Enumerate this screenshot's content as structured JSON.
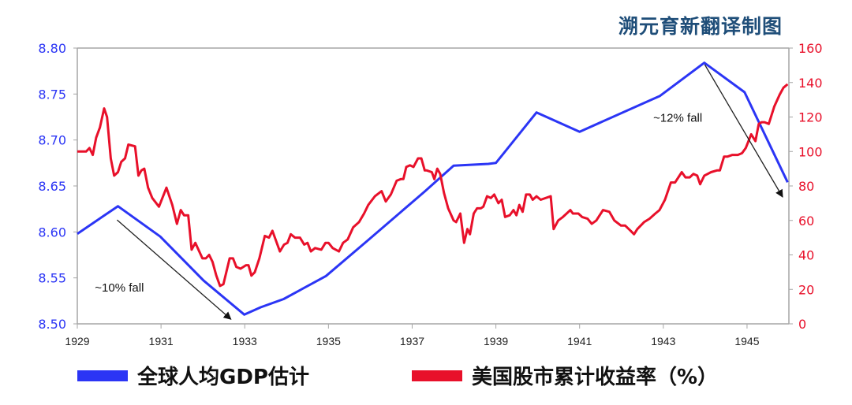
{
  "title": "溯元育新翻译制图",
  "chart_data": {
    "type": "line",
    "title": "",
    "xlabel": "",
    "xlim": [
      1929,
      1946
    ],
    "x_ticks": [
      "1929",
      "1931",
      "1933",
      "1935",
      "1937",
      "1939",
      "1941",
      "1943",
      "1945"
    ],
    "y_left": {
      "lim": [
        8.5,
        8.8
      ],
      "ticks": [
        "8.50",
        "8.55",
        "8.60",
        "8.65",
        "8.70",
        "8.75",
        "8.80"
      ],
      "color": "#2b35f5"
    },
    "y_right": {
      "lim": [
        0,
        160
      ],
      "ticks": [
        "0",
        "20",
        "40",
        "60",
        "80",
        "100",
        "120",
        "140",
        "160"
      ],
      "color": "#e8102a"
    },
    "grid": false,
    "legend_position": "bottom",
    "series": [
      {
        "name": "全球人均GDP估计",
        "axis": "left",
        "color": "#2b35f5",
        "points": [
          [
            1929.0,
            8.598
          ],
          [
            1929.97,
            8.628
          ],
          [
            1930.98,
            8.595
          ],
          [
            1932.02,
            8.547
          ],
          [
            1932.99,
            8.51
          ],
          [
            1933.38,
            8.518
          ],
          [
            1933.93,
            8.527
          ],
          [
            1934.94,
            8.552
          ],
          [
            1935.92,
            8.59
          ],
          [
            1937.3,
            8.644
          ],
          [
            1937.99,
            8.672
          ],
          [
            1938.82,
            8.674
          ],
          [
            1939.0,
            8.675
          ],
          [
            1939.97,
            8.73
          ],
          [
            1941.0,
            8.709
          ],
          [
            1942.92,
            8.748
          ],
          [
            1943.98,
            8.784
          ],
          [
            1944.94,
            8.752
          ],
          [
            1945.97,
            8.654
          ]
        ]
      },
      {
        "name": "美国股市累计收益率（%）",
        "axis": "right",
        "color": "#e8102a",
        "points": [
          [
            1929.0,
            100
          ],
          [
            1929.21,
            100
          ],
          [
            1929.29,
            102
          ],
          [
            1929.37,
            98
          ],
          [
            1929.45,
            108
          ],
          [
            1929.54,
            114
          ],
          [
            1929.64,
            125
          ],
          [
            1929.71,
            120
          ],
          [
            1929.8,
            96
          ],
          [
            1929.88,
            86
          ],
          [
            1929.97,
            88
          ],
          [
            1930.05,
            94
          ],
          [
            1930.14,
            96
          ],
          [
            1930.22,
            104
          ],
          [
            1930.38,
            103
          ],
          [
            1930.46,
            86
          ],
          [
            1930.53,
            89
          ],
          [
            1930.6,
            90
          ],
          [
            1930.69,
            79
          ],
          [
            1930.79,
            73
          ],
          [
            1930.95,
            68
          ],
          [
            1931.13,
            79
          ],
          [
            1931.27,
            69
          ],
          [
            1931.38,
            58
          ],
          [
            1931.47,
            66
          ],
          [
            1931.55,
            63
          ],
          [
            1931.65,
            63
          ],
          [
            1931.73,
            43
          ],
          [
            1931.82,
            47
          ],
          [
            1931.99,
            38
          ],
          [
            1932.07,
            38
          ],
          [
            1932.15,
            40
          ],
          [
            1932.23,
            36
          ],
          [
            1932.32,
            28
          ],
          [
            1932.41,
            22
          ],
          [
            1932.49,
            23
          ],
          [
            1932.64,
            38
          ],
          [
            1932.72,
            38
          ],
          [
            1932.8,
            33
          ],
          [
            1932.9,
            32
          ],
          [
            1933.03,
            34
          ],
          [
            1933.09,
            34
          ],
          [
            1933.16,
            28
          ],
          [
            1933.24,
            30
          ],
          [
            1933.35,
            38
          ],
          [
            1933.48,
            51
          ],
          [
            1933.58,
            50
          ],
          [
            1933.66,
            54
          ],
          [
            1933.84,
            42
          ],
          [
            1933.94,
            46
          ],
          [
            1934.02,
            47
          ],
          [
            1934.1,
            52
          ],
          [
            1934.2,
            50
          ],
          [
            1934.32,
            50
          ],
          [
            1934.42,
            46
          ],
          [
            1934.5,
            47
          ],
          [
            1934.58,
            42
          ],
          [
            1934.68,
            44
          ],
          [
            1934.83,
            43
          ],
          [
            1934.93,
            47
          ],
          [
            1935.0,
            47
          ],
          [
            1935.1,
            44
          ],
          [
            1935.25,
            42
          ],
          [
            1935.35,
            47
          ],
          [
            1935.46,
            49
          ],
          [
            1935.59,
            56
          ],
          [
            1935.73,
            59
          ],
          [
            1935.85,
            64
          ],
          [
            1935.95,
            69
          ],
          [
            1936.11,
            74
          ],
          [
            1936.27,
            77
          ],
          [
            1936.37,
            71
          ],
          [
            1936.49,
            75
          ],
          [
            1936.63,
            83
          ],
          [
            1936.73,
            84
          ],
          [
            1936.79,
            84
          ],
          [
            1936.86,
            91
          ],
          [
            1936.95,
            92
          ],
          [
            1937.03,
            91
          ],
          [
            1937.14,
            96
          ],
          [
            1937.22,
            96
          ],
          [
            1937.3,
            89
          ],
          [
            1937.35,
            89
          ],
          [
            1937.47,
            88
          ],
          [
            1937.53,
            84
          ],
          [
            1937.6,
            90
          ],
          [
            1937.67,
            87
          ],
          [
            1937.76,
            76
          ],
          [
            1937.86,
            67
          ],
          [
            1937.99,
            60
          ],
          [
            1938.05,
            59
          ],
          [
            1938.15,
            64
          ],
          [
            1938.24,
            47
          ],
          [
            1938.32,
            55
          ],
          [
            1938.38,
            52
          ],
          [
            1938.47,
            64
          ],
          [
            1938.55,
            67
          ],
          [
            1938.64,
            67
          ],
          [
            1938.7,
            68
          ],
          [
            1938.79,
            74
          ],
          [
            1938.88,
            73
          ],
          [
            1938.96,
            75
          ],
          [
            1939.06,
            70
          ],
          [
            1939.14,
            72
          ],
          [
            1939.22,
            62
          ],
          [
            1939.33,
            63
          ],
          [
            1939.42,
            66
          ],
          [
            1939.49,
            63
          ],
          [
            1939.56,
            69
          ],
          [
            1939.64,
            65
          ],
          [
            1939.72,
            75
          ],
          [
            1939.81,
            75
          ],
          [
            1939.88,
            72
          ],
          [
            1939.97,
            74
          ],
          [
            1940.07,
            72
          ],
          [
            1940.31,
            74
          ],
          [
            1940.38,
            55
          ],
          [
            1940.49,
            60
          ],
          [
            1940.6,
            62
          ],
          [
            1940.78,
            66
          ],
          [
            1940.84,
            64
          ],
          [
            1940.97,
            64
          ],
          [
            1941.06,
            62
          ],
          [
            1941.19,
            61
          ],
          [
            1941.29,
            58
          ],
          [
            1941.4,
            60
          ],
          [
            1941.56,
            66
          ],
          [
            1941.71,
            65
          ],
          [
            1941.83,
            60
          ],
          [
            1941.99,
            57
          ],
          [
            1942.09,
            57
          ],
          [
            1942.22,
            54
          ],
          [
            1942.3,
            52
          ],
          [
            1942.38,
            55
          ],
          [
            1942.54,
            59
          ],
          [
            1942.67,
            61
          ],
          [
            1942.81,
            64
          ],
          [
            1942.91,
            66
          ],
          [
            1943.04,
            72
          ],
          [
            1943.18,
            82
          ],
          [
            1943.28,
            82
          ],
          [
            1943.44,
            88
          ],
          [
            1943.53,
            85
          ],
          [
            1943.63,
            85
          ],
          [
            1943.72,
            87
          ],
          [
            1943.81,
            86
          ],
          [
            1943.88,
            81
          ],
          [
            1943.98,
            86
          ],
          [
            1944.14,
            88
          ],
          [
            1944.28,
            89
          ],
          [
            1944.35,
            89
          ],
          [
            1944.45,
            97
          ],
          [
            1944.53,
            97
          ],
          [
            1944.65,
            98
          ],
          [
            1944.78,
            98
          ],
          [
            1944.88,
            99
          ],
          [
            1944.97,
            102
          ],
          [
            1945.1,
            110
          ],
          [
            1945.2,
            106
          ],
          [
            1945.28,
            116
          ],
          [
            1945.35,
            117
          ],
          [
            1945.42,
            117
          ],
          [
            1945.52,
            116
          ],
          [
            1945.65,
            126
          ],
          [
            1945.78,
            133
          ],
          [
            1945.87,
            137
          ],
          [
            1945.97,
            139
          ]
        ]
      }
    ],
    "annotations": [
      {
        "text": "~10% fall",
        "x": 1929.42,
        "y": 8.535,
        "arrow_from": [
          1929.95,
          8.613
        ],
        "arrow_to": [
          1932.67,
          8.505
        ]
      },
      {
        "text": "~12% fall",
        "x": 1942.76,
        "y": 8.72,
        "arrow_from": [
          1943.99,
          8.782
        ],
        "arrow_to": [
          1945.85,
          8.638
        ]
      }
    ]
  },
  "legend": [
    {
      "label": "全球人均GDP估计",
      "color": "#2b35f5"
    },
    {
      "label": "美国股市累计收益率（%）",
      "color": "#e8102a"
    }
  ]
}
